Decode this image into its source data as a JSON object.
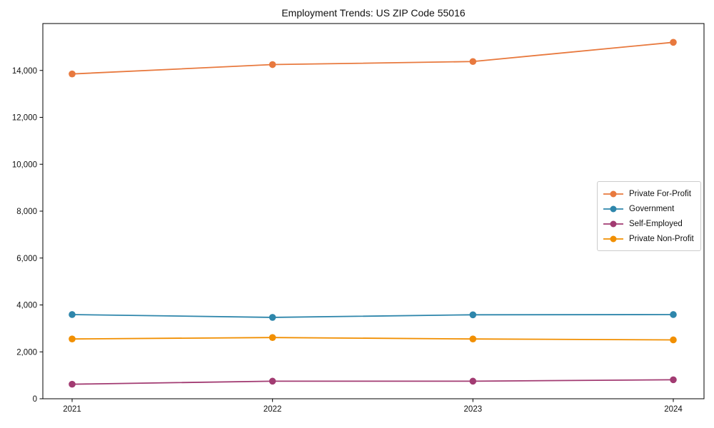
{
  "window": {
    "title": "Employment Trends: US ZIP Code 55016"
  },
  "chart_data": {
    "type": "line",
    "title": "Employment Trends: US ZIP Code 55016",
    "categories": [
      "2021",
      "2022",
      "2023",
      "2024"
    ],
    "series": [
      {
        "name": "Private For-Profit",
        "color": "#e8793e",
        "values": [
          13850,
          14250,
          14380,
          15200
        ]
      },
      {
        "name": "Government",
        "color": "#2e86ab",
        "values": [
          3590,
          3470,
          3580,
          3590
        ]
      },
      {
        "name": "Self-Employed",
        "color": "#a23b72",
        "values": [
          620,
          750,
          750,
          810
        ]
      },
      {
        "name": "Private Non-Profit",
        "color": "#f18f01",
        "values": [
          2550,
          2610,
          2550,
          2510
        ]
      }
    ],
    "xlabel": "",
    "ylabel": "",
    "ylim": [
      0,
      16000
    ],
    "yticks": [
      0,
      2000,
      4000,
      6000,
      8000,
      10000,
      12000,
      14000
    ],
    "ytick_labels": [
      "0",
      "2,000",
      "4,000",
      "6,000",
      "8,000",
      "10,000",
      "12,000",
      "14,000"
    ],
    "grid": false,
    "legend_position": "center-right",
    "marker": "circle",
    "axis_color": "#000000",
    "background_color": "#ffffff"
  }
}
